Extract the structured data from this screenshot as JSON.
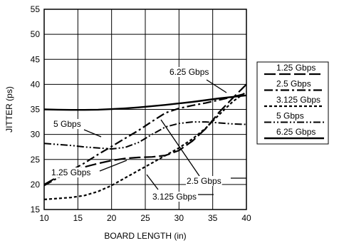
{
  "chart_data": {
    "type": "line",
    "xlabel": "BOARD LENGTH (in)",
    "ylabel": "JITTER (ps)",
    "xlim": [
      10,
      40
    ],
    "ylim": [
      15,
      55
    ],
    "x_ticks": [
      10,
      15,
      20,
      25,
      30,
      35,
      40
    ],
    "y_ticks": [
      15,
      20,
      25,
      30,
      35,
      40,
      45,
      50,
      55
    ],
    "grid": true,
    "legend": "right",
    "series": [
      {
        "name": "1.25 Gbps",
        "dash": "long-dash",
        "x": [
          10,
          12,
          14,
          16,
          18,
          20,
          22,
          24,
          26,
          28,
          30,
          32,
          34,
          36,
          38,
          40
        ],
        "y": [
          20,
          21.5,
          22.6,
          23.5,
          24.2,
          24.8,
          25.2,
          25.4,
          25.5,
          25.8,
          26.8,
          28.7,
          31.2,
          34.5,
          37.3,
          40
        ]
      },
      {
        "name": "2.5 Gbps",
        "dash": "dash",
        "x": [
          10,
          12,
          14,
          16,
          18,
          20,
          22,
          24,
          26,
          28,
          30,
          32,
          34,
          36,
          38,
          40
        ],
        "y": [
          19.8,
          21.3,
          22.8,
          24.3,
          26,
          27.6,
          29.2,
          30.8,
          32.6,
          34.3,
          35.2,
          35.8,
          36.3,
          36.9,
          37.5,
          38.2
        ]
      },
      {
        "name": "3.125 Gbps",
        "dash": "short-dash",
        "x": [
          10,
          12,
          14,
          16,
          18,
          20,
          22,
          24,
          26,
          28,
          30,
          32,
          34,
          36,
          38,
          40
        ],
        "y": [
          17,
          17.2,
          17.4,
          17.8,
          18.6,
          19.8,
          21.3,
          22.8,
          24.3,
          25.8,
          27.3,
          29.1,
          31.3,
          34,
          36.6,
          38.5
        ]
      },
      {
        "name": "5 Gbps",
        "dash": "dash-dot-dot",
        "x": [
          10,
          12,
          14,
          16,
          18,
          20,
          22,
          24,
          26,
          28,
          30,
          32,
          34,
          36,
          38,
          40
        ],
        "y": [
          28.2,
          28,
          27.8,
          27.5,
          27.3,
          27.1,
          27.4,
          28.4,
          30,
          31.5,
          32.2,
          32.5,
          32.5,
          32.3,
          32.1,
          32
        ]
      },
      {
        "name": "6.25 Gbps",
        "dash": "solid",
        "x": [
          10,
          12,
          14,
          16,
          18,
          20,
          22,
          24,
          26,
          28,
          30,
          32,
          34,
          36,
          38,
          40
        ],
        "y": [
          35,
          34.95,
          34.9,
          34.9,
          34.95,
          35.05,
          35.2,
          35.4,
          35.65,
          35.9,
          36.2,
          36.5,
          36.85,
          37.2,
          37.5,
          37.8
        ]
      }
    ],
    "annotations": [
      {
        "text": "6.25 Gbps"
      },
      {
        "text": "5 Gbps"
      },
      {
        "text": "1.25 Gbps"
      },
      {
        "text": "2.5 Gbps"
      },
      {
        "text": "3.125 Gbps"
      }
    ]
  }
}
